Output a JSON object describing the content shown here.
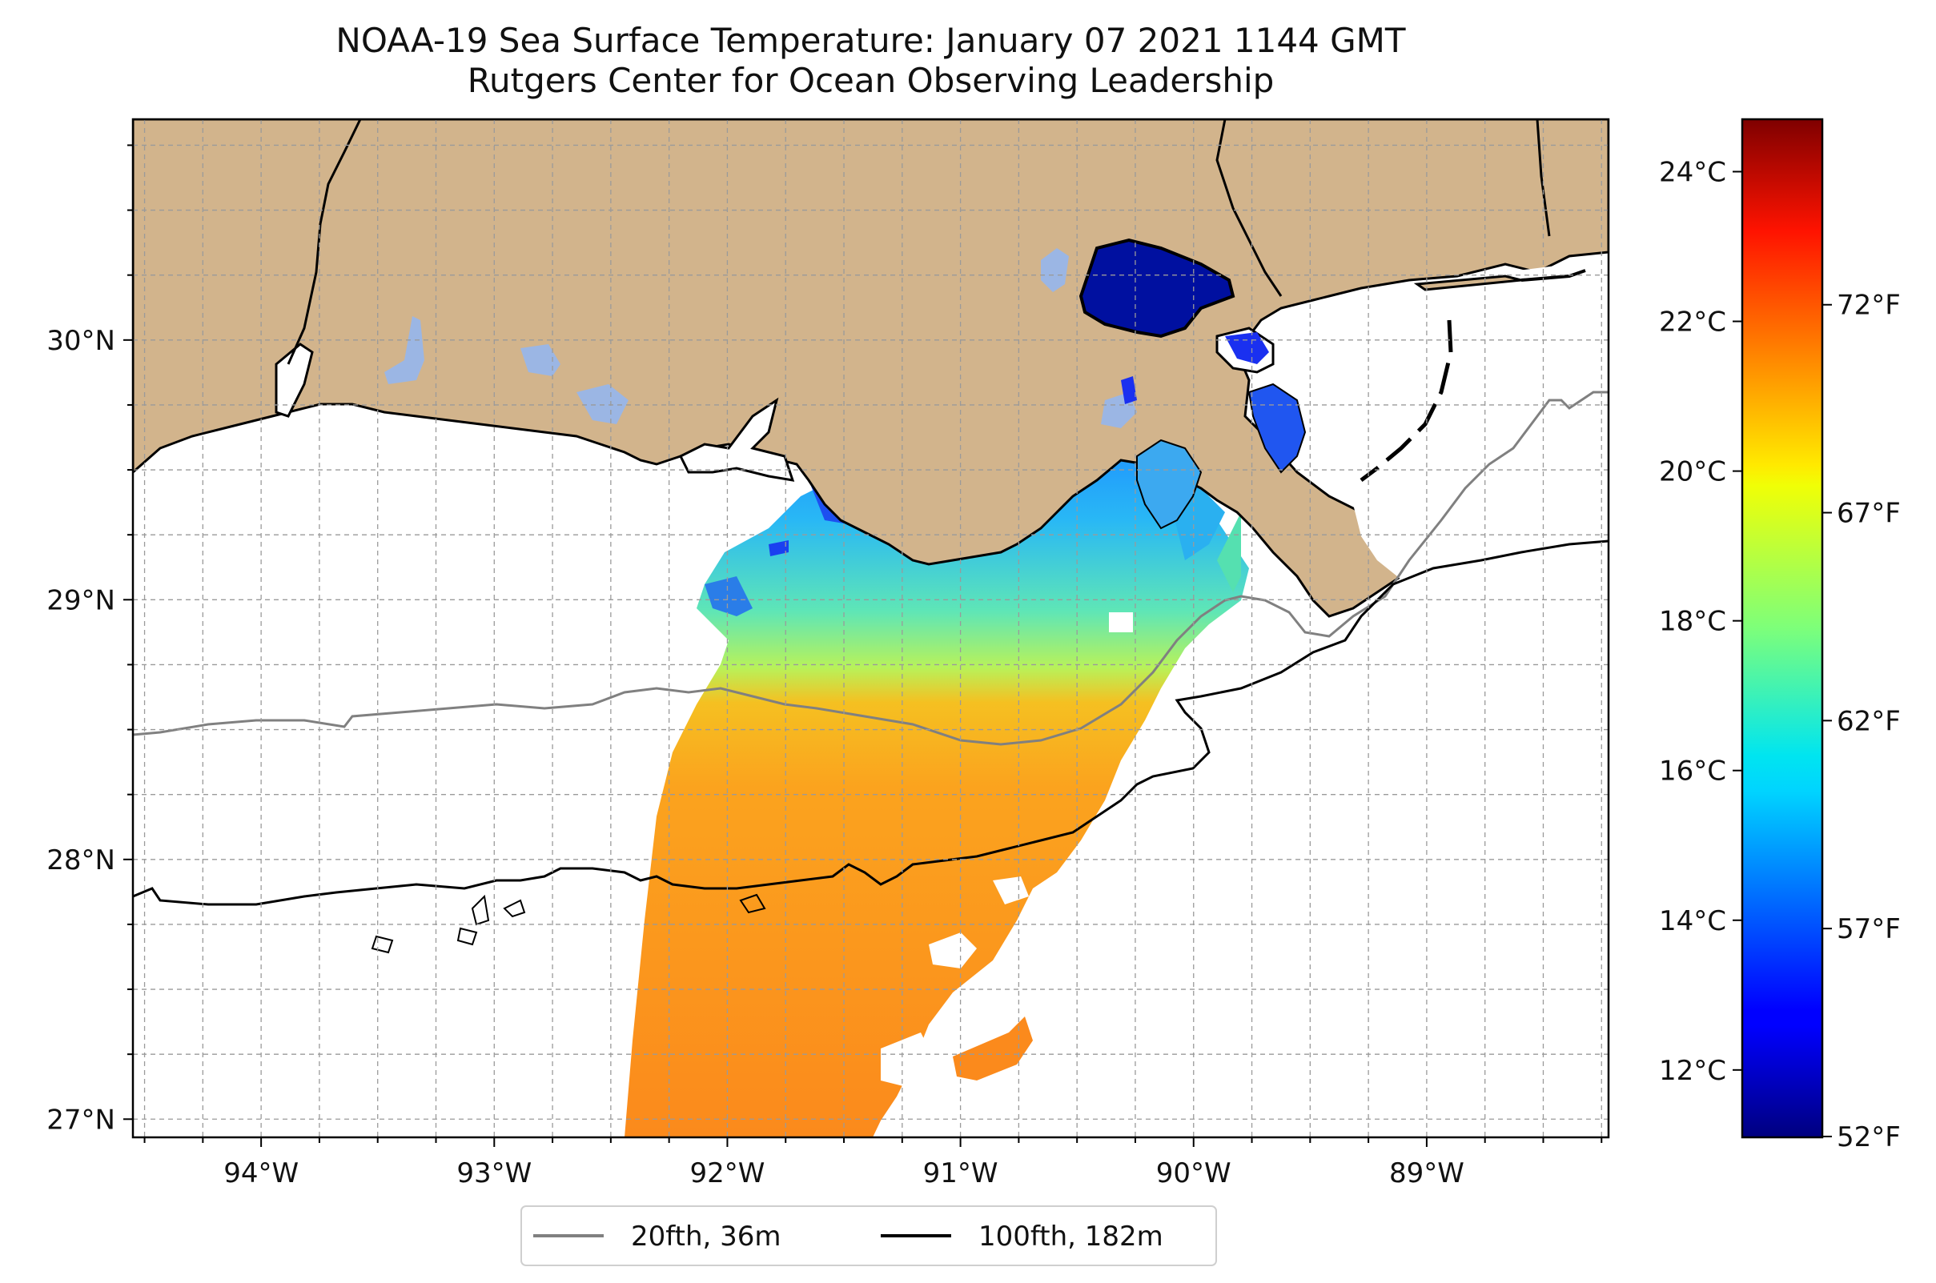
{
  "title": {
    "line1": "NOAA-19 Sea Surface Temperature: January 07 2021 1144 GMT",
    "line2": "Rutgers Center for Ocean Observing Leadership"
  },
  "map": {
    "lon_range": [
      -94.55,
      -88.22
    ],
    "lat_range": [
      26.93,
      30.85
    ],
    "lon_ticks": [
      {
        "value": -94,
        "label": "94°W"
      },
      {
        "value": -93,
        "label": "93°W"
      },
      {
        "value": -92,
        "label": "92°W"
      },
      {
        "value": -91,
        "label": "91°W"
      },
      {
        "value": -90,
        "label": "90°W"
      },
      {
        "value": -89,
        "label": "89°W"
      }
    ],
    "lat_ticks": [
      {
        "value": 30,
        "label": "30°N"
      },
      {
        "value": 29,
        "label": "29°N"
      },
      {
        "value": 28,
        "label": "28°N"
      },
      {
        "value": 27,
        "label": "27°N"
      }
    ],
    "land_color": "#d2b48c",
    "lake_color": "#9bb6e4",
    "gridlines": true,
    "grid_style": "dashed"
  },
  "colorbar": {
    "colormap": "jet",
    "celsius_range": [
      11.1,
      24.7
    ],
    "celsius_ticks": [
      {
        "value": 12,
        "label": "12°C"
      },
      {
        "value": 14,
        "label": "14°C"
      },
      {
        "value": 16,
        "label": "16°C"
      },
      {
        "value": 18,
        "label": "18°C"
      },
      {
        "value": 20,
        "label": "20°C"
      },
      {
        "value": 22,
        "label": "22°C"
      },
      {
        "value": 24,
        "label": "24°C"
      }
    ],
    "fahrenheit_ticks": [
      {
        "value": 52,
        "label": "52°F"
      },
      {
        "value": 57,
        "label": "57°F"
      },
      {
        "value": 62,
        "label": "62°F"
      },
      {
        "value": 67,
        "label": "67°F"
      },
      {
        "value": 72,
        "label": "72°F"
      }
    ]
  },
  "legend": {
    "placement": "bottom-center",
    "entries": [
      {
        "label": "20fth, 36m",
        "color": "#808080"
      },
      {
        "label": "100fth, 182m",
        "color": "#000000"
      }
    ]
  }
}
